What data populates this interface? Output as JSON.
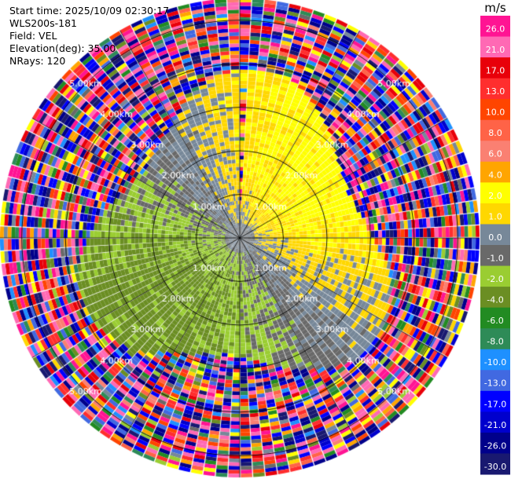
{
  "info": {
    "start_time": "Start time: 2025/10/09 02:30:17",
    "instrument": "WLS200s-181",
    "field": "Field: VEL",
    "elevation": "Elevation(deg): 35.00",
    "nrays": "NRays: 120"
  },
  "chart_data": {
    "type": "heatmap",
    "subtype": "radar-ppi",
    "field": "VEL",
    "elevation_deg": 35.0,
    "n_rays": 120,
    "max_range_km": 5.5,
    "range_rings_km": [
      1,
      2,
      3,
      4,
      5
    ],
    "range_ring_labels": [
      "1.00km",
      "2.00km",
      "3.00km",
      "4.00km",
      "5.00km"
    ],
    "colorbar": {
      "unit": "m/s",
      "tick_labels": [
        "26.0",
        "21.0",
        "17.0",
        "13.0",
        "10.0",
        "8.0",
        "6.0",
        "4.0",
        "2.0",
        "1.0",
        "0.0",
        "-1.0",
        "-2.0",
        "-4.0",
        "-6.0",
        "-8.0",
        "-10.0",
        "-13.0",
        "-17.0",
        "-21.0",
        "-26.0",
        "-30.0"
      ],
      "bins": [
        {
          "min": 26,
          "max": 30,
          "color": "#ff1493"
        },
        {
          "min": 21,
          "max": 26,
          "color": "#ff69b4"
        },
        {
          "min": 17,
          "max": 21,
          "color": "#e8000a"
        },
        {
          "min": 13,
          "max": 17,
          "color": "#ff2e2e"
        },
        {
          "min": 10,
          "max": 13,
          "color": "#ff4500"
        },
        {
          "min": 8,
          "max": 10,
          "color": "#ff6347"
        },
        {
          "min": 6,
          "max": 8,
          "color": "#fa8072"
        },
        {
          "min": 4,
          "max": 6,
          "color": "#ffa500"
        },
        {
          "min": 2,
          "max": 4,
          "color": "#ffff00"
        },
        {
          "min": 1,
          "max": 2,
          "color": "#ffd700"
        },
        {
          "min": 0,
          "max": 1,
          "color": "#778899"
        },
        {
          "min": -1,
          "max": 0,
          "color": "#696969"
        },
        {
          "min": -2,
          "max": -1,
          "color": "#9acd32"
        },
        {
          "min": -4,
          "max": -2,
          "color": "#6b8e23"
        },
        {
          "min": -6,
          "max": -4,
          "color": "#228b22"
        },
        {
          "min": -8,
          "max": -6,
          "color": "#2e8b57"
        },
        {
          "min": -10,
          "max": -8,
          "color": "#1e90ff"
        },
        {
          "min": -13,
          "max": -10,
          "color": "#4169e1"
        },
        {
          "min": -17,
          "max": -13,
          "color": "#0000ff"
        },
        {
          "min": -21,
          "max": -17,
          "color": "#0000cd"
        },
        {
          "min": -26,
          "max": -21,
          "color": "#00008b"
        },
        {
          "min": -30,
          "max": -26,
          "color": "#191970"
        }
      ]
    }
  }
}
